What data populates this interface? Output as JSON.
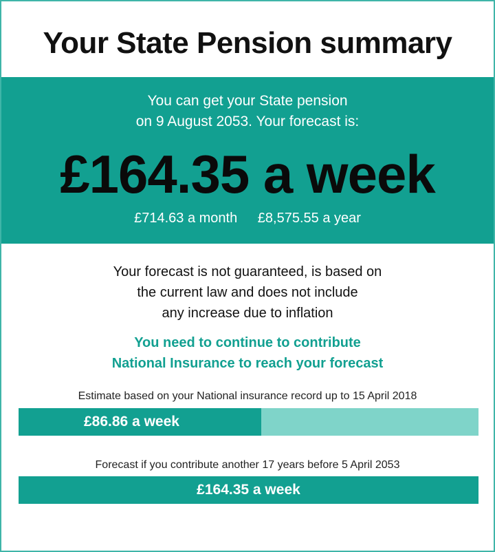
{
  "title": "Your State Pension summary",
  "header": {
    "intro_line1": "You can get your State pension",
    "intro_line2": "on 9 August 2053. Your forecast is:",
    "weekly": "£164.35 a week",
    "monthly": "£714.63 a month",
    "yearly": "£8,575.55 a year"
  },
  "disclaimer": [
    "Your forecast is not guaranteed, is based on",
    "the current law and does not include",
    "any increase due to inflation"
  ],
  "contribute_note": [
    "You need to continue to contribute",
    "National Insurance to reach your forecast"
  ],
  "estimate": {
    "label": "Estimate based on your National insurance record up to 15 April 2018",
    "value": "£86.86 a week",
    "fraction_of_forecast": 0.528
  },
  "forecast": {
    "label": "Forecast if you contribute another 17 years before 5 April 2053",
    "value": "£164.35 a week",
    "fraction_of_forecast": 1.0
  },
  "colors": {
    "teal": "#12a091",
    "light_teal": "#7fd4c9",
    "border": "#3fb5a8"
  }
}
